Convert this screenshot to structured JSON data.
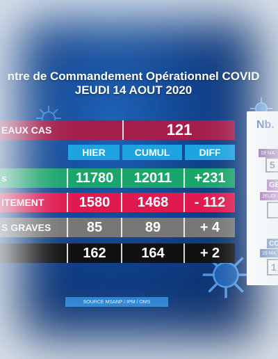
{
  "header": {
    "title_line1": "ntre de Commandement Opérationnel COVID",
    "title_line2": "JEUDI 14 AOUT 2020"
  },
  "table": {
    "columns": [
      "HIER",
      "CUMUL",
      "DIFF"
    ],
    "new_cases": {
      "label": "EAUX CAS",
      "value": "121"
    },
    "rows": [
      {
        "label": "s",
        "hier": "11780",
        "cumul": "12011",
        "diff": "+231",
        "color": "#1aa56b"
      },
      {
        "label": "ITEMENT",
        "hier": "1580",
        "cumul": "1468",
        "diff": "- 112",
        "color": "#e01a4f"
      },
      {
        "label": "S GRAVES",
        "hier": "85",
        "cumul": "89",
        "diff": "+ 4",
        "color": "#777777"
      },
      {
        "label": "",
        "hier": "162",
        "cumul": "164",
        "diff": "+ 2",
        "color": "#111111"
      }
    ],
    "new_cases_color": "#a41e4c"
  },
  "source": "SOURCE MSANP / IPM / OMS",
  "side_panel": {
    "heading": "Nb.",
    "pill1": "19 MA",
    "value1": "5",
    "pill2": "GE",
    "pill2b": "JEUDI",
    "pill3": "CO",
    "pill3b": "19 MA",
    "value3": "1"
  }
}
